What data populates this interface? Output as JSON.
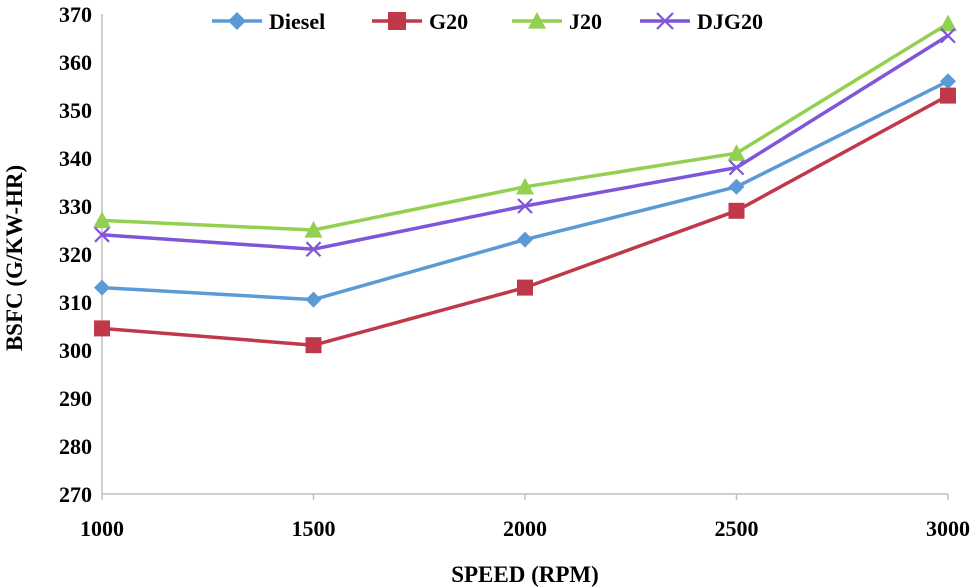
{
  "chart_data": {
    "type": "line",
    "title": "",
    "xlabel": "SPEED (RPM)",
    "ylabel": "BSFC (G/KW-HR)",
    "categories": [
      "1000",
      "1500",
      "2000",
      "2500",
      "3000"
    ],
    "x": [
      1000,
      1500,
      2000,
      2500,
      3000
    ],
    "ylim": [
      270,
      370
    ],
    "yticks": [
      "270",
      "280",
      "290",
      "300",
      "310",
      "320",
      "330",
      "340",
      "350",
      "360",
      "370"
    ],
    "grid": false,
    "legend_position": "top",
    "series": [
      {
        "name": "Diesel",
        "values": [
          313,
          310.5,
          323,
          334,
          356
        ],
        "color": "#5b9bd5",
        "marker": "diamond"
      },
      {
        "name": "G20",
        "values": [
          304.5,
          301,
          313,
          329,
          353
        ],
        "color": "#c0394b",
        "marker": "square"
      },
      {
        "name": "J20",
        "values": [
          327,
          325,
          334,
          341,
          368
        ],
        "color": "#92d050",
        "marker": "triangle"
      },
      {
        "name": "DJG20",
        "values": [
          324,
          321,
          330,
          338,
          365.5
        ],
        "color": "#7f56d9",
        "marker": "x"
      }
    ]
  }
}
